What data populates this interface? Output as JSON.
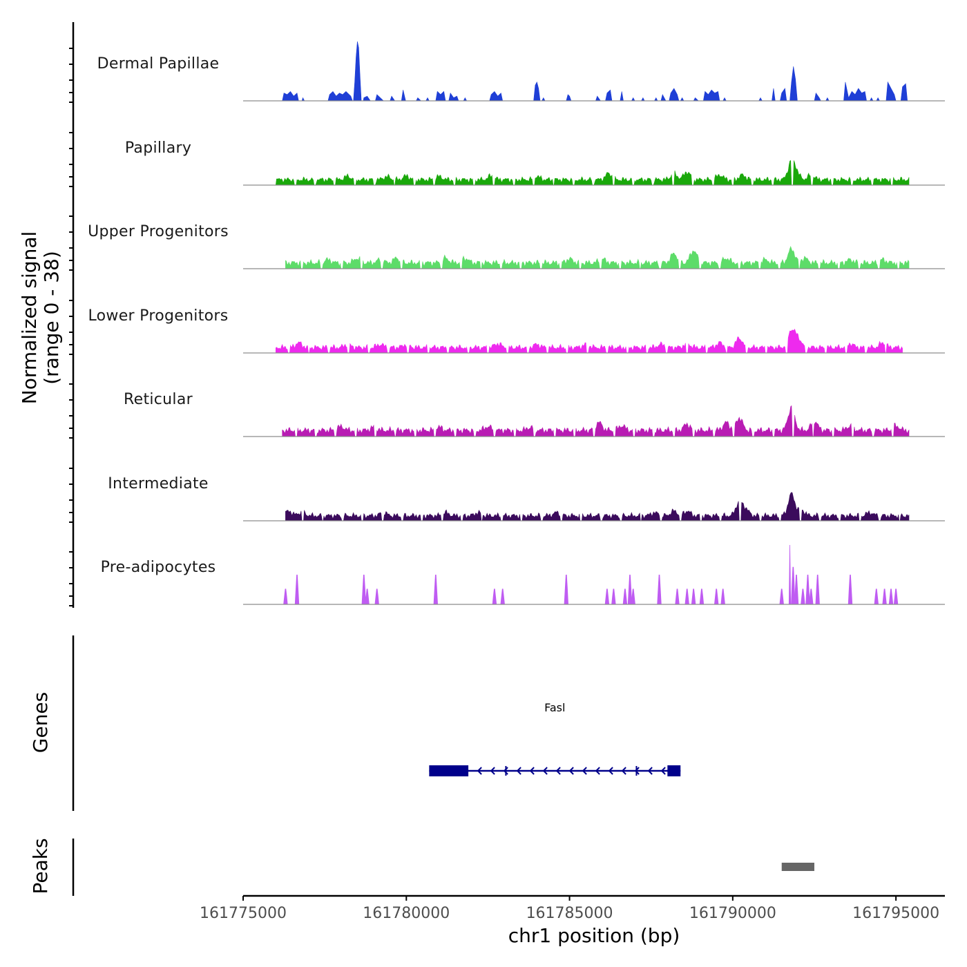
{
  "chart_data": {
    "type": "area",
    "title": "",
    "chromosome": "chr1",
    "xlabel": "chr1 position (bp)",
    "ylabel": "Normalized signal",
    "ylabel_range": "(range 0 - 38)",
    "xlim": [
      161775000,
      161796500
    ],
    "ylim": [
      0,
      38
    ],
    "x_ticks": [
      161775000,
      161780000,
      161785000,
      161790000,
      161795000
    ],
    "x_tick_labels": [
      "161775000",
      "161780000",
      "161785000",
      "161790000",
      "161795000"
    ],
    "tracks": [
      {
        "name": "Dermal Papillae",
        "color": "#1f3fd6",
        "style": "sparse",
        "points": [
          [
            161776200,
            0
          ],
          [
            161776250,
            5
          ],
          [
            161776350,
            4
          ],
          [
            161776450,
            6
          ],
          [
            161776550,
            3
          ],
          [
            161776650,
            5
          ],
          [
            161776700,
            0
          ],
          [
            161776800,
            0
          ],
          [
            161776830,
            2
          ],
          [
            161776880,
            0
          ],
          [
            161777600,
            0
          ],
          [
            161777650,
            4
          ],
          [
            161777750,
            6
          ],
          [
            161777850,
            3
          ],
          [
            161777950,
            5
          ],
          [
            161778050,
            4
          ],
          [
            161778150,
            6
          ],
          [
            161778300,
            3
          ],
          [
            161778350,
            0
          ],
          [
            161778380,
            0
          ],
          [
            161778420,
            12
          ],
          [
            161778460,
            28
          ],
          [
            161778500,
            38
          ],
          [
            161778540,
            34
          ],
          [
            161778580,
            16
          ],
          [
            161778620,
            0
          ],
          [
            161778680,
            0
          ],
          [
            161778700,
            2
          ],
          [
            161778800,
            3
          ],
          [
            161778900,
            0
          ],
          [
            161779050,
            0
          ],
          [
            161779100,
            4
          ],
          [
            161779200,
            2
          ],
          [
            161779300,
            0
          ],
          [
            161779500,
            0
          ],
          [
            161779550,
            3
          ],
          [
            161779650,
            0
          ],
          [
            161779850,
            0
          ],
          [
            161779900,
            7
          ],
          [
            161779980,
            0
          ],
          [
            161780300,
            0
          ],
          [
            161780350,
            2
          ],
          [
            161780450,
            0
          ],
          [
            161780600,
            0
          ],
          [
            161780650,
            2
          ],
          [
            161780700,
            0
          ],
          [
            161780900,
            0
          ],
          [
            161780950,
            6
          ],
          [
            161781050,
            4
          ],
          [
            161781150,
            6
          ],
          [
            161781200,
            0
          ],
          [
            161781300,
            0
          ],
          [
            161781350,
            5
          ],
          [
            161781450,
            2
          ],
          [
            161781550,
            3
          ],
          [
            161781600,
            0
          ],
          [
            161781750,
            0
          ],
          [
            161781800,
            2
          ],
          [
            161781850,
            0
          ],
          [
            161782550,
            0
          ],
          [
            161782600,
            4
          ],
          [
            161782700,
            6
          ],
          [
            161782800,
            3
          ],
          [
            161782900,
            5
          ],
          [
            161782950,
            0
          ],
          [
            161783900,
            0
          ],
          [
            161783950,
            10
          ],
          [
            161784000,
            12
          ],
          [
            161784050,
            8
          ],
          [
            161784100,
            0
          ],
          [
            161784150,
            0
          ],
          [
            161784200,
            2
          ],
          [
            161784250,
            0
          ],
          [
            161784900,
            0
          ],
          [
            161784950,
            4
          ],
          [
            161785000,
            3
          ],
          [
            161785050,
            0
          ],
          [
            161785800,
            0
          ],
          [
            161785850,
            3
          ],
          [
            161785950,
            0
          ],
          [
            161786100,
            0
          ],
          [
            161786150,
            5
          ],
          [
            161786250,
            7
          ],
          [
            161786300,
            0
          ],
          [
            161786550,
            0
          ],
          [
            161786600,
            6
          ],
          [
            161786650,
            0
          ],
          [
            161786900,
            0
          ],
          [
            161786950,
            2
          ],
          [
            161787000,
            0
          ],
          [
            161787200,
            0
          ],
          [
            161787250,
            2
          ],
          [
            161787300,
            0
          ],
          [
            161787600,
            0
          ],
          [
            161787650,
            2
          ],
          [
            161787700,
            0
          ],
          [
            161787800,
            0
          ],
          [
            161787850,
            4
          ],
          [
            161787950,
            0
          ],
          [
            161788050,
            0
          ],
          [
            161788100,
            5
          ],
          [
            161788200,
            8
          ],
          [
            161788300,
            4
          ],
          [
            161788350,
            0
          ],
          [
            161788400,
            0
          ],
          [
            161788450,
            2
          ],
          [
            161788500,
            0
          ],
          [
            161788800,
            0
          ],
          [
            161788850,
            2
          ],
          [
            161788950,
            0
          ],
          [
            161789100,
            0
          ],
          [
            161789150,
            6
          ],
          [
            161789250,
            4
          ],
          [
            161789350,
            7
          ],
          [
            161789450,
            5
          ],
          [
            161789550,
            6
          ],
          [
            161789600,
            0
          ],
          [
            161789700,
            0
          ],
          [
            161789750,
            2
          ],
          [
            161789800,
            0
          ],
          [
            161790800,
            0
          ],
          [
            161790850,
            2
          ],
          [
            161790900,
            0
          ],
          [
            161791200,
            0
          ],
          [
            161791250,
            8
          ],
          [
            161791300,
            0
          ],
          [
            161791450,
            0
          ],
          [
            161791500,
            5
          ],
          [
            161791600,
            8
          ],
          [
            161791650,
            0
          ],
          [
            161791750,
            0
          ],
          [
            161791800,
            12
          ],
          [
            161791860,
            22
          ],
          [
            161791920,
            14
          ],
          [
            161791980,
            0
          ],
          [
            161792500,
            0
          ],
          [
            161792550,
            5
          ],
          [
            161792650,
            2
          ],
          [
            161792700,
            0
          ],
          [
            161792850,
            0
          ],
          [
            161792900,
            2
          ],
          [
            161792950,
            0
          ],
          [
            161793400,
            0
          ],
          [
            161793450,
            12
          ],
          [
            161793550,
            2
          ],
          [
            161793650,
            6
          ],
          [
            161793750,
            4
          ],
          [
            161793850,
            8
          ],
          [
            161793950,
            5
          ],
          [
            161794050,
            6
          ],
          [
            161794100,
            0
          ],
          [
            161794200,
            0
          ],
          [
            161794250,
            2
          ],
          [
            161794300,
            0
          ],
          [
            161794400,
            0
          ],
          [
            161794450,
            2
          ],
          [
            161794500,
            0
          ],
          [
            161794700,
            0
          ],
          [
            161794750,
            12
          ],
          [
            161794850,
            8
          ],
          [
            161794950,
            4
          ],
          [
            161795000,
            0
          ],
          [
            161795150,
            0
          ],
          [
            161795200,
            9
          ],
          [
            161795300,
            11
          ],
          [
            161795350,
            0
          ]
        ]
      },
      {
        "name": "Papillary",
        "color": "#1aa80b",
        "style": "smooth",
        "base": 1.5,
        "wiggle": 1.6,
        "start": 161776000,
        "end": 161795400,
        "peaks": [
          [
            161778200,
            2.2
          ],
          [
            161779400,
            2
          ],
          [
            161780000,
            2.4
          ],
          [
            161781000,
            2
          ],
          [
            161782600,
            2.4
          ],
          [
            161784000,
            2
          ],
          [
            161786200,
            4
          ],
          [
            161788200,
            4
          ],
          [
            161788600,
            5
          ],
          [
            161789600,
            3
          ],
          [
            161790300,
            3
          ],
          [
            161791800,
            12
          ],
          [
            161791950,
            4
          ],
          [
            161792400,
            3
          ]
        ]
      },
      {
        "name": "Upper Progenitors",
        "color": "#5ddc69",
        "style": "smooth",
        "base": 1.5,
        "wiggle": 1.8,
        "start": 161776300,
        "end": 161795400,
        "peaks": [
          [
            161777600,
            2
          ],
          [
            161778500,
            3
          ],
          [
            161779200,
            2
          ],
          [
            161779700,
            3
          ],
          [
            161781200,
            3
          ],
          [
            161781800,
            3
          ],
          [
            161785000,
            2.5
          ],
          [
            161786000,
            2.5
          ],
          [
            161788200,
            6
          ],
          [
            161788800,
            8
          ],
          [
            161789800,
            3
          ],
          [
            161791000,
            2
          ],
          [
            161791800,
            9
          ],
          [
            161792200,
            3
          ],
          [
            161793600,
            2
          ],
          [
            161794600,
            2
          ]
        ]
      },
      {
        "name": "Lower Progenitors",
        "color": "#ee2aee",
        "style": "smooth",
        "base": 1.4,
        "wiggle": 1.7,
        "start": 161776000,
        "end": 161795200,
        "peaks": [
          [
            161776700,
            3
          ],
          [
            161778200,
            2
          ],
          [
            161779200,
            2
          ],
          [
            161780000,
            2
          ],
          [
            161782800,
            2.5
          ],
          [
            161784000,
            2
          ],
          [
            161785500,
            2
          ],
          [
            161787800,
            2
          ],
          [
            161788600,
            2.5
          ],
          [
            161789600,
            3
          ],
          [
            161790200,
            6
          ],
          [
            161791800,
            11
          ],
          [
            161792000,
            6
          ],
          [
            161793600,
            2.5
          ],
          [
            161794600,
            3
          ]
        ]
      },
      {
        "name": "Reticular",
        "color": "#b81cb3",
        "style": "smooth",
        "base": 1.6,
        "wiggle": 1.9,
        "start": 161776200,
        "end": 161795400,
        "peaks": [
          [
            161778000,
            2.5
          ],
          [
            161779000,
            2
          ],
          [
            161781000,
            2
          ],
          [
            161782500,
            2.5
          ],
          [
            161783800,
            2
          ],
          [
            161785900,
            5
          ],
          [
            161786600,
            3
          ],
          [
            161788600,
            4
          ],
          [
            161789800,
            5
          ],
          [
            161790200,
            8
          ],
          [
            161791800,
            15
          ],
          [
            161792500,
            6
          ],
          [
            161793600,
            3
          ],
          [
            161795000,
            3
          ]
        ]
      },
      {
        "name": "Intermediate",
        "color": "#3b0b5c",
        "style": "smooth",
        "base": 1.3,
        "wiggle": 1.6,
        "start": 161776300,
        "end": 161795400,
        "peaks": [
          [
            161776400,
            3
          ],
          [
            161776800,
            2.5
          ],
          [
            161779300,
            2
          ],
          [
            161781200,
            2
          ],
          [
            161782200,
            2
          ],
          [
            161784600,
            2
          ],
          [
            161787600,
            2
          ],
          [
            161788200,
            3
          ],
          [
            161788600,
            3
          ],
          [
            161790200,
            9
          ],
          [
            161790400,
            4
          ],
          [
            161791800,
            14
          ],
          [
            161792100,
            4
          ],
          [
            161794200,
            2
          ]
        ]
      },
      {
        "name": "Pre-adipocytes",
        "color": "#bf5cf2",
        "style": "spikes",
        "spikes": [
          [
            161776300,
            10
          ],
          [
            161776650,
            19
          ],
          [
            161778700,
            19
          ],
          [
            161778800,
            10
          ],
          [
            161779100,
            10
          ],
          [
            161780900,
            19
          ],
          [
            161782700,
            10
          ],
          [
            161782950,
            10
          ],
          [
            161784900,
            19
          ],
          [
            161786150,
            10
          ],
          [
            161786350,
            10
          ],
          [
            161786700,
            10
          ],
          [
            161786850,
            19
          ],
          [
            161786950,
            10
          ],
          [
            161787750,
            19
          ],
          [
            161788300,
            10
          ],
          [
            161788600,
            10
          ],
          [
            161788800,
            10
          ],
          [
            161789050,
            10
          ],
          [
            161789500,
            10
          ],
          [
            161789700,
            10
          ],
          [
            161791500,
            10
          ],
          [
            161791750,
            38
          ],
          [
            161791850,
            24
          ],
          [
            161791950,
            19
          ],
          [
            161792150,
            10
          ],
          [
            161792300,
            19
          ],
          [
            161792400,
            10
          ],
          [
            161792600,
            19
          ],
          [
            161793600,
            19
          ],
          [
            161794400,
            10
          ],
          [
            161794650,
            10
          ],
          [
            161794850,
            10
          ],
          [
            161795000,
            10
          ]
        ]
      }
    ],
    "genes_track": {
      "label": "Genes",
      "genes": [
        {
          "name": "Fasl",
          "strand": "-",
          "start": 161780700,
          "end": 161788400,
          "exons": [
            [
              161780700,
              161781900
            ],
            [
              161788000,
              161788400
            ]
          ],
          "color": "#00008b"
        }
      ]
    },
    "peaks_track": {
      "label": "Peaks",
      "peaks": [
        [
          161791500,
          161792500
        ]
      ],
      "color": "#666666"
    }
  }
}
